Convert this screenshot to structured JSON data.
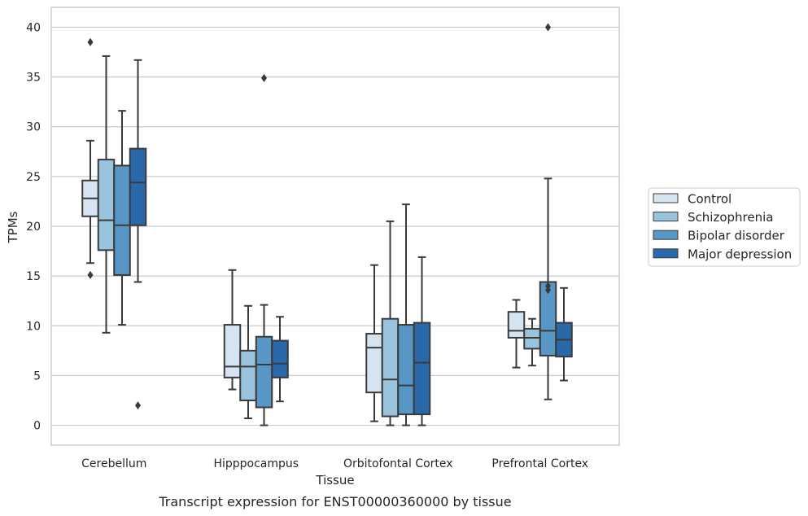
{
  "chart_data": {
    "type": "box",
    "title": "",
    "caption": "Transcript expression for ENST00000360000 by tissue",
    "xlabel": "Tissue",
    "ylabel": "TPMs",
    "ylim": [
      -2,
      42
    ],
    "yticks": [
      0,
      5,
      10,
      15,
      20,
      25,
      30,
      35,
      40
    ],
    "grid": "horizontal",
    "legend_position": "right",
    "categories": [
      "Cerebellum",
      "Hipppocampus",
      "Orbitofontal Cortex",
      "Prefrontal Cortex"
    ],
    "series": [
      {
        "name": "Control",
        "color": "#d6e4f1",
        "boxes": [
          {
            "whislo": 16.3,
            "q1": 21.0,
            "med": 22.8,
            "q3": 24.6,
            "whishi": 28.6,
            "fliers": [
              38.5,
              15.1
            ]
          },
          {
            "whislo": 3.6,
            "q1": 4.8,
            "med": 5.9,
            "q3": 10.1,
            "whishi": 15.6,
            "fliers": []
          },
          {
            "whislo": 0.4,
            "q1": 3.3,
            "med": 7.8,
            "q3": 9.2,
            "whishi": 16.1,
            "fliers": []
          },
          {
            "whislo": 5.8,
            "q1": 8.8,
            "med": 9.5,
            "q3": 11.4,
            "whishi": 12.6,
            "fliers": []
          }
        ]
      },
      {
        "name": "Schizophrenia",
        "color": "#9ac4de",
        "boxes": [
          {
            "whislo": 9.3,
            "q1": 17.6,
            "med": 20.6,
            "q3": 26.7,
            "whishi": 37.1,
            "fliers": []
          },
          {
            "whislo": 0.7,
            "q1": 2.5,
            "med": 5.9,
            "q3": 7.5,
            "whishi": 12.0,
            "fliers": []
          },
          {
            "whislo": 0.0,
            "q1": 0.9,
            "med": 4.6,
            "q3": 10.7,
            "whishi": 20.5,
            "fliers": []
          },
          {
            "whislo": 6.0,
            "q1": 7.7,
            "med": 8.8,
            "q3": 9.7,
            "whishi": 10.7,
            "fliers": []
          }
        ]
      },
      {
        "name": "Bipolar disorder",
        "color": "#5796c5",
        "boxes": [
          {
            "whislo": 10.1,
            "q1": 15.1,
            "med": 20.1,
            "q3": 26.1,
            "whishi": 31.6,
            "fliers": []
          },
          {
            "whislo": 0.0,
            "q1": 1.8,
            "med": 6.1,
            "q3": 8.9,
            "whishi": 12.1,
            "fliers": [
              34.9
            ]
          },
          {
            "whislo": 0.0,
            "q1": 1.1,
            "med": 4.0,
            "q3": 10.1,
            "whishi": 22.2,
            "fliers": []
          },
          {
            "whislo": 2.6,
            "q1": 7.0,
            "med": 9.5,
            "q3": 14.4,
            "whishi": 24.8,
            "fliers": [
              40.0,
              14.0,
              13.6
            ]
          }
        ]
      },
      {
        "name": "Major depression",
        "color": "#2a69a9",
        "boxes": [
          {
            "whislo": 14.4,
            "q1": 20.1,
            "med": 24.4,
            "q3": 27.8,
            "whishi": 36.7,
            "fliers": [
              2.0
            ]
          },
          {
            "whislo": 2.4,
            "q1": 4.8,
            "med": 6.2,
            "q3": 8.5,
            "whishi": 10.9,
            "fliers": []
          },
          {
            "whislo": 0.0,
            "q1": 1.1,
            "med": 6.3,
            "q3": 10.3,
            "whishi": 16.9,
            "fliers": []
          },
          {
            "whislo": 4.5,
            "q1": 6.9,
            "med": 8.6,
            "q3": 10.3,
            "whishi": 13.8,
            "fliers": []
          }
        ]
      }
    ]
  },
  "colors": {
    "grid": "#cccccc",
    "frame": "#cccccc",
    "box_edge": "#3a3a3a"
  }
}
